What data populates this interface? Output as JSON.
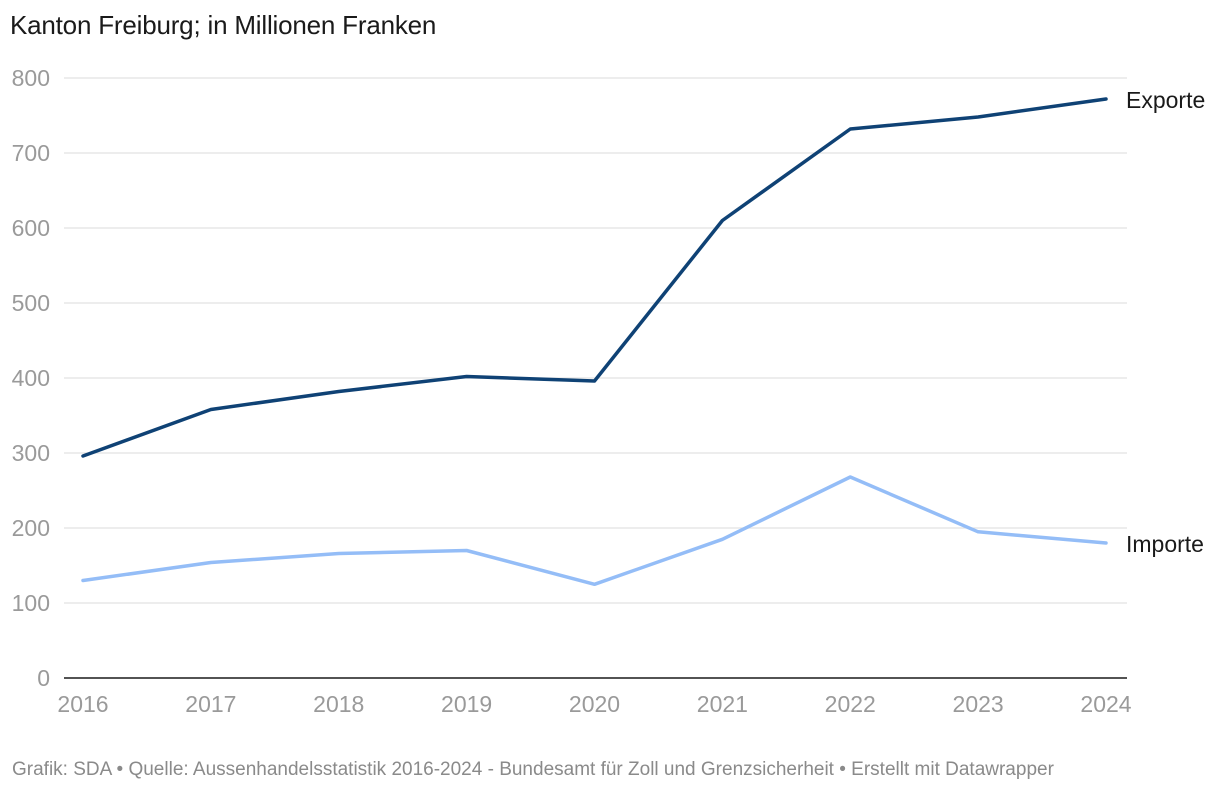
{
  "title": "Kanton Freiburg; in Millionen Franken",
  "footer": "Grafik: SDA • Quelle: Aussenhandelsstatistik 2016-2024 - Bundesamt für Zoll und Grenzsicherheit • Erstellt mit Datawrapper",
  "chart_data": {
    "type": "line",
    "title": "Kanton Freiburg; in Millionen Franken",
    "xlabel": "",
    "ylabel": "",
    "x": [
      "2016",
      "2017",
      "2018",
      "2019",
      "2020",
      "2021",
      "2022",
      "2023",
      "2024"
    ],
    "ylim": [
      0,
      800
    ],
    "yticks": [
      0,
      100,
      200,
      300,
      400,
      500,
      600,
      700,
      800
    ],
    "grid": true,
    "legend": "direct labels at line ends (right)",
    "series": [
      {
        "name": "Exporte",
        "color": "#0f4275",
        "values": [
          296,
          358,
          382,
          402,
          396,
          610,
          732,
          748,
          772
        ]
      },
      {
        "name": "Importe",
        "color": "#94bdf7",
        "values": [
          130,
          154,
          166,
          170,
          125,
          185,
          268,
          195,
          180
        ]
      }
    ]
  }
}
